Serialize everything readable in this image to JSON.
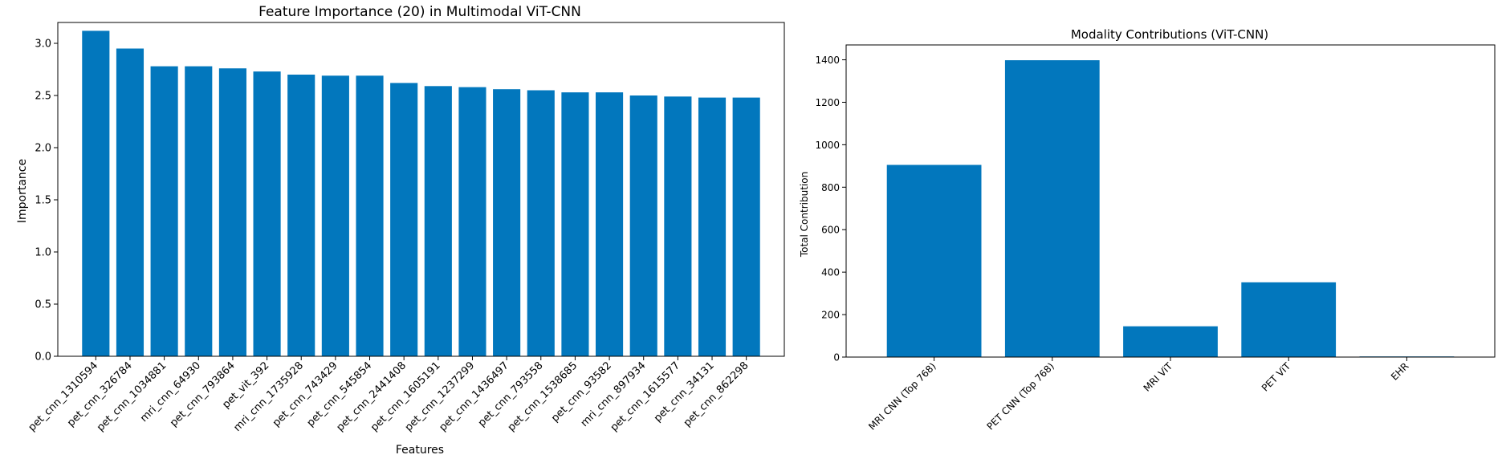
{
  "charts": {
    "chart_data": [
      {
        "type": "bar",
        "title": "Feature Importance (20) in Multimodal ViT-CNN",
        "xlabel": "Features",
        "ylabel": "Importance",
        "ylim": [
          0,
          3.2
        ],
        "yticks": [
          "0.0",
          "0.5",
          "1.0",
          "1.5",
          "2.0",
          "2.5",
          "3.0"
        ],
        "categories": [
          "pet_cnn_1310594",
          "pet_cnn_326784",
          "pet_cnn_1034881",
          "mri_cnn_64930",
          "pet_cnn_793864",
          "pet_vit_392",
          "mri_cnn_1735928",
          "pet_cnn_743429",
          "pet_cnn_545854",
          "pet_cnn_2441408",
          "pet_cnn_1605191",
          "pet_cnn_1237299",
          "pet_cnn_1436497",
          "pet_cnn_793558",
          "pet_cnn_1538685",
          "pet_cnn_93582",
          "mri_cnn_897934",
          "pet_cnn_1615577",
          "pet_cnn_34131",
          "pet_cnn_862298"
        ],
        "values": [
          3.12,
          2.95,
          2.78,
          2.78,
          2.76,
          2.73,
          2.7,
          2.69,
          2.69,
          2.62,
          2.59,
          2.58,
          2.56,
          2.55,
          2.53,
          2.53,
          2.5,
          2.49,
          2.48,
          2.48
        ],
        "bar_color": "#0277bd",
        "grid": false
      },
      {
        "type": "bar",
        "title": "Modality Contributions (ViT-CNN)",
        "xlabel": "",
        "ylabel": "Total Contribution",
        "ylim": [
          0,
          1470
        ],
        "yticks": [
          "0",
          "200",
          "400",
          "600",
          "800",
          "1000",
          "1200",
          "1400"
        ],
        "categories": [
          "MRI CNN (Top 768)",
          "PET CNN (Top 768)",
          "MRI ViT",
          "PET ViT",
          "EHR"
        ],
        "values": [
          905,
          1398,
          145,
          352,
          3
        ],
        "bar_color": "#0277bd",
        "grid": false
      }
    ]
  }
}
